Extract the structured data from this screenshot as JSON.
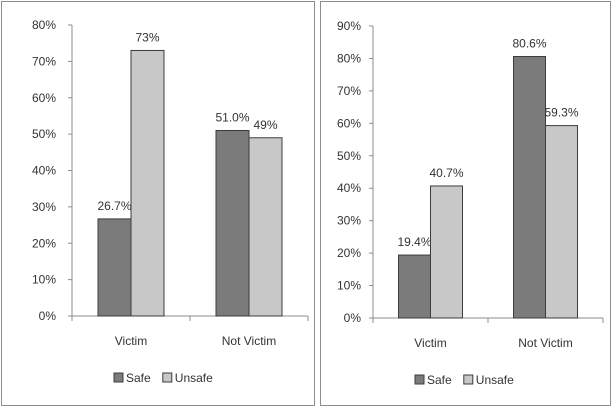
{
  "chart_data": [
    {
      "type": "bar",
      "categories": [
        "Victim",
        "Not Victim"
      ],
      "series": [
        {
          "name": "Safe",
          "values": [
            26.7,
            51.0
          ],
          "color": "#7b7b7b"
        },
        {
          "name": "Unsafe",
          "values": [
            73,
            49
          ],
          "color": "#c8c8c8"
        }
      ],
      "data_labels": [
        [
          "26.7%",
          "51.0%"
        ],
        [
          "73%",
          "49%"
        ]
      ],
      "ylim": [
        0,
        80
      ],
      "yticks": [
        0,
        10,
        20,
        30,
        40,
        50,
        60,
        70,
        80
      ],
      "ytick_labels": [
        "0%",
        "10%",
        "20%",
        "30%",
        "40%",
        "50%",
        "60%",
        "70%",
        "80%"
      ],
      "title": "",
      "xlabel": "",
      "ylabel": "",
      "grid": false,
      "legend_position": "bottom"
    },
    {
      "type": "bar",
      "categories": [
        "Victim",
        "Not Victim"
      ],
      "series": [
        {
          "name": "Safe",
          "values": [
            19.4,
            80.6
          ],
          "color": "#7b7b7b"
        },
        {
          "name": "Unsafe",
          "values": [
            40.7,
            59.3
          ],
          "color": "#c8c8c8"
        }
      ],
      "data_labels": [
        [
          "19.4%",
          "80.6%"
        ],
        [
          "40.7%",
          "59.3%"
        ]
      ],
      "ylim": [
        0,
        90
      ],
      "yticks": [
        0,
        10,
        20,
        30,
        40,
        50,
        60,
        70,
        80,
        90
      ],
      "ytick_labels": [
        "0%",
        "10%",
        "20%",
        "30%",
        "40%",
        "50%",
        "60%",
        "70%",
        "80%",
        "90%"
      ],
      "title": "",
      "xlabel": "",
      "ylabel": "",
      "grid": false,
      "legend_position": "bottom"
    }
  ],
  "colors": {
    "safe": "#7b7b7b",
    "unsafe": "#c8c8c8",
    "bar_stroke": "#3c3c3c",
    "axis": "#8c8c8c"
  }
}
